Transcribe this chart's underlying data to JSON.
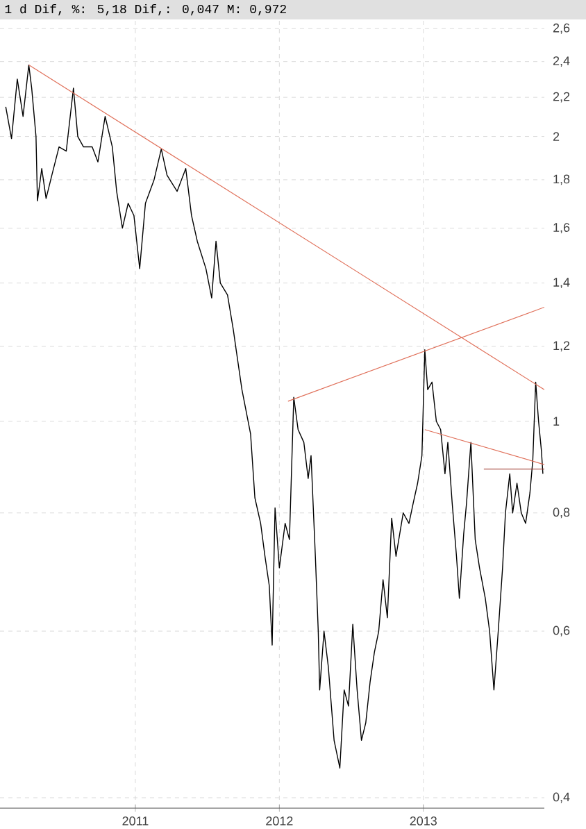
{
  "chart_data": {
    "type": "line",
    "title": "1 d Dif, %: 5,18 Dif,: 0,047 M: 0,972",
    "log": "y",
    "grid": true,
    "marker": "none",
    "line_style": "solid",
    "xlim": [
      2010.06,
      2013.84
    ],
    "xticks": [
      2011,
      2012,
      2013
    ],
    "ylim": [
      0.39,
      2.65
    ],
    "yticks": [
      {
        "value": 0.4,
        "label": "0,4"
      },
      {
        "value": 0.6,
        "label": "0,6"
      },
      {
        "value": 0.8,
        "label": "0,8"
      },
      1,
      {
        "value": 1.2,
        "label": "1,2"
      },
      {
        "value": 1.4,
        "label": "1,4"
      },
      {
        "value": 1.6,
        "label": "1,6"
      },
      {
        "value": 1.8,
        "label": "1,8"
      },
      2,
      {
        "value": 2.2,
        "label": "2,2"
      },
      {
        "value": 2.4,
        "label": "2,4"
      },
      {
        "value": 2.6,
        "label": "2,6"
      }
    ],
    "series": [
      {
        "color": "#000000",
        "x": [
          2010.1,
          2010.14,
          2010.18,
          2010.22,
          2010.26,
          2010.28,
          2010.31,
          2010.32,
          2010.35,
          2010.38,
          2010.42,
          2010.47,
          2010.52,
          2010.57,
          2010.6,
          2010.64,
          2010.7,
          2010.74,
          2010.79,
          2010.84,
          2010.87,
          2010.91,
          2010.95,
          2010.99,
          2011.03,
          2011.07,
          2011.13,
          2011.18,
          2011.22,
          2011.29,
          2011.35,
          2011.39,
          2011.43,
          2011.49,
          2011.53,
          2011.56,
          2011.59,
          2011.64,
          2011.68,
          2011.7,
          2011.74,
          2011.8,
          2011.83,
          2011.87,
          2011.9,
          2011.93,
          2011.95,
          2011.97,
          2012.0,
          2012.04,
          2012.07,
          2012.1,
          2012.13,
          2012.17,
          2012.2,
          2012.22,
          2012.25,
          2012.27,
          2012.28,
          2012.31,
          2012.34,
          2012.38,
          2012.42,
          2012.45,
          2012.48,
          2012.51,
          2012.54,
          2012.57,
          2012.6,
          2012.63,
          2012.66,
          2012.69,
          2012.72,
          2012.75,
          2012.78,
          2012.81,
          2012.86,
          2012.9,
          2012.93,
          2012.96,
          2012.99,
          2013.01,
          2013.03,
          2013.06,
          2013.09,
          2013.12,
          2013.15,
          2013.17,
          2013.2,
          2013.23,
          2013.25,
          2013.28,
          2013.3,
          2013.33,
          2013.36,
          2013.39,
          2013.43,
          2013.46,
          2013.49,
          2013.52,
          2013.55,
          2013.57,
          2013.6,
          2013.62,
          2013.65,
          2013.68,
          2013.71,
          2013.74,
          2013.76,
          2013.78,
          2013.8,
          2013.82,
          2013.83
        ],
        "values": [
          2.15,
          1.99,
          2.3,
          2.1,
          2.38,
          2.25,
          2.0,
          1.71,
          1.85,
          1.72,
          1.82,
          1.95,
          1.93,
          2.25,
          2.0,
          1.95,
          1.95,
          1.88,
          2.1,
          1.95,
          1.75,
          1.6,
          1.7,
          1.65,
          1.45,
          1.7,
          1.8,
          1.94,
          1.82,
          1.75,
          1.85,
          1.65,
          1.55,
          1.45,
          1.35,
          1.55,
          1.4,
          1.36,
          1.25,
          1.19,
          1.08,
          0.97,
          0.83,
          0.78,
          0.72,
          0.67,
          0.58,
          0.81,
          0.7,
          0.78,
          0.75,
          1.06,
          0.98,
          0.95,
          0.87,
          0.92,
          0.72,
          0.6,
          0.52,
          0.6,
          0.55,
          0.46,
          0.43,
          0.52,
          0.5,
          0.61,
          0.52,
          0.46,
          0.48,
          0.53,
          0.57,
          0.6,
          0.68,
          0.62,
          0.79,
          0.72,
          0.8,
          0.78,
          0.82,
          0.86,
          0.92,
          1.19,
          1.08,
          1.1,
          1.0,
          0.98,
          0.88,
          0.95,
          0.82,
          0.72,
          0.65,
          0.76,
          0.82,
          0.95,
          0.75,
          0.7,
          0.65,
          0.6,
          0.52,
          0.6,
          0.7,
          0.8,
          0.88,
          0.8,
          0.86,
          0.8,
          0.78,
          0.84,
          0.91,
          1.1,
          1.0,
          0.93,
          0.88
        ]
      },
      {
        "color": "#e0705a",
        "x": [
          2010.26,
          2013.84
        ],
        "values": [
          2.38,
          1.08
        ]
      },
      {
        "color": "#e0705a",
        "x": [
          2012.06,
          2013.84
        ],
        "values": [
          1.05,
          1.32
        ]
      },
      {
        "color": "#e0705a",
        "x": [
          2013.01,
          2013.84
        ],
        "values": [
          0.98,
          0.9
        ]
      },
      {
        "color": "#a03c30",
        "x": [
          2013.42,
          2013.84
        ],
        "values": [
          0.89,
          0.89
        ]
      }
    ]
  }
}
